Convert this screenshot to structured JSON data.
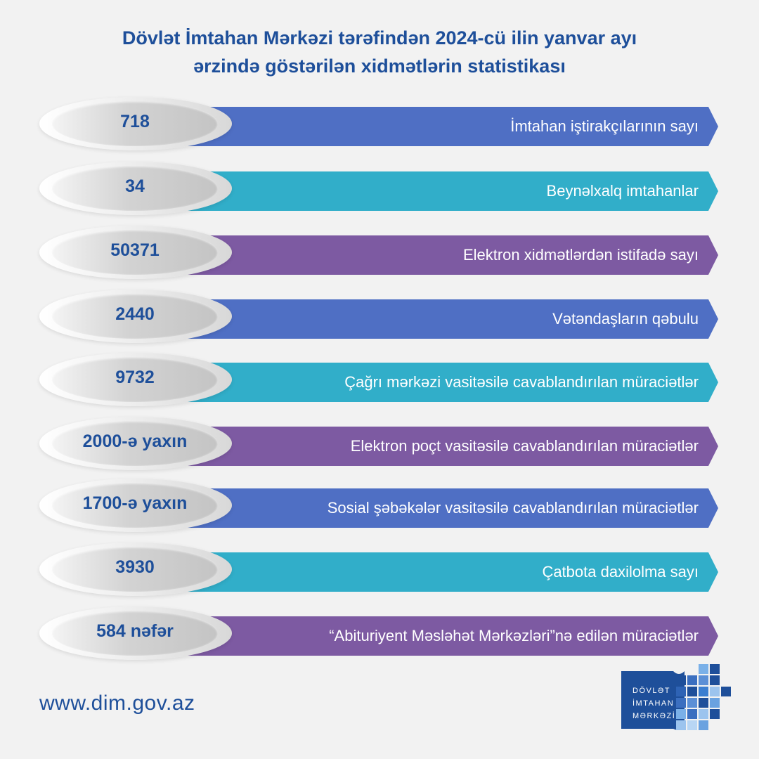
{
  "title_line1": "Dövlət İmtahan Mərkəzi tərəfindən 2024-cü ilin yanvar ayı",
  "title_line2": "ərzində göstərilən xidmətlərin statistikası",
  "rows": [
    {
      "value": "718",
      "label": "İmtahan iştirakçılarının sayı",
      "color": "#4f6fc4"
    },
    {
      "value": "34",
      "label": "Beynəlxalq imtahanlar",
      "color": "#31aec9"
    },
    {
      "value": "50371",
      "label": "Elektron xidmətlərdən istifadə sayı",
      "color": "#7d5aa2"
    },
    {
      "value": "2440",
      "label": "Vətəndaşların qəbulu",
      "color": "#4f6fc4"
    },
    {
      "value": "9732",
      "label": "Çağrı mərkəzi vasitəsilə cavablandırılan müraciətlər",
      "color": "#31aec9"
    },
    {
      "value": "2000-ə yaxın",
      "label": "Elektron poçt vasitəsilə cavablandırılan müraciətlər",
      "color": "#7d5aa2"
    },
    {
      "value": "1700-ə yaxın",
      "label": "Sosial şəbəkələr vasitəsilə cavablandırılan müraciətlər",
      "color": "#4f6fc4"
    },
    {
      "value": "3930",
      "label": "Çatbota daxilolma sayı",
      "color": "#31aec9"
    },
    {
      "value": "584 nəfər",
      "label": "“Abituriyent Məsləhət Mərkəzləri”nə edilən müraciətlər",
      "color": "#7d5aa2"
    }
  ],
  "website": "www.dim.gov.az",
  "logo": {
    "line1": "DÖVLƏT",
    "line2": "İMTAHAN",
    "line3": "MƏRKƏZİ",
    "icon": "dim-logo-icon",
    "color": "#1e4f9a"
  }
}
